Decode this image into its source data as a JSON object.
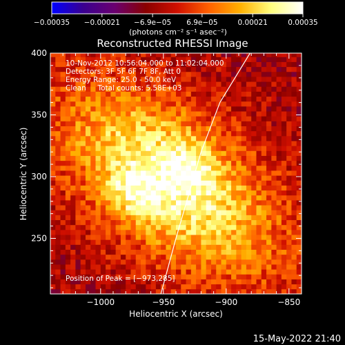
{
  "chart_data": {
    "type": "heatmap",
    "title": "Reconstructed RHESSI Image",
    "xlabel": "Heliocentric X (arcsec)",
    "ylabel": "Heliocentric Y (arcsec)",
    "xlim": [
      -1040,
      -840
    ],
    "ylim": [
      205,
      400
    ],
    "xticks": [
      -1000,
      -950,
      -900,
      -850
    ],
    "xtick_labels": [
      "−1000",
      "−950",
      "−900",
      "−850"
    ],
    "yticks": [
      250,
      300,
      350,
      400
    ],
    "ytick_labels": [
      "250",
      "300",
      "350",
      "400"
    ],
    "colorbar": {
      "range": [
        -0.00035,
        0.00035
      ],
      "ticks": [
        -0.00035,
        -0.00021,
        -6.9e-05,
        6.9e-05,
        0.00021,
        0.00035
      ],
      "tick_labels": [
        "−0.00035",
        "−0.00021",
        "−6.9e−05",
        "6.9e−05",
        "0.00021",
        "0.00035"
      ],
      "unit_label": "(photons cm⁻² s⁻¹ asec⁻²)",
      "colormap": [
        "#0000ff",
        "#3a0090",
        "#6a0070",
        "#8a0000",
        "#d01000",
        "#ff6000",
        "#ffb000",
        "#ffff80",
        "#ffffff"
      ]
    },
    "annotations": [
      "10-Nov-2012 10:56:04.000 to 11:02:04.000",
      "Detectors: 3F 5F 6F 7F 8F, Att 0",
      "Energy Range: 25.0 - 50.0 keV",
      "Clean     Total counts: 5.58E+03"
    ],
    "peak_label": "Position of Peak = [−973,285]",
    "peak": [
      -973,
      285
    ],
    "source_center": [
      -945,
      297
    ],
    "limb_curve": [
      [
        -952,
        205
      ],
      [
        -940,
        250
      ],
      [
        -920,
        320
      ],
      [
        -905,
        360
      ],
      [
        -881,
        400
      ]
    ]
  },
  "footer": {
    "timestamp": "15-May-2022 21:40"
  }
}
